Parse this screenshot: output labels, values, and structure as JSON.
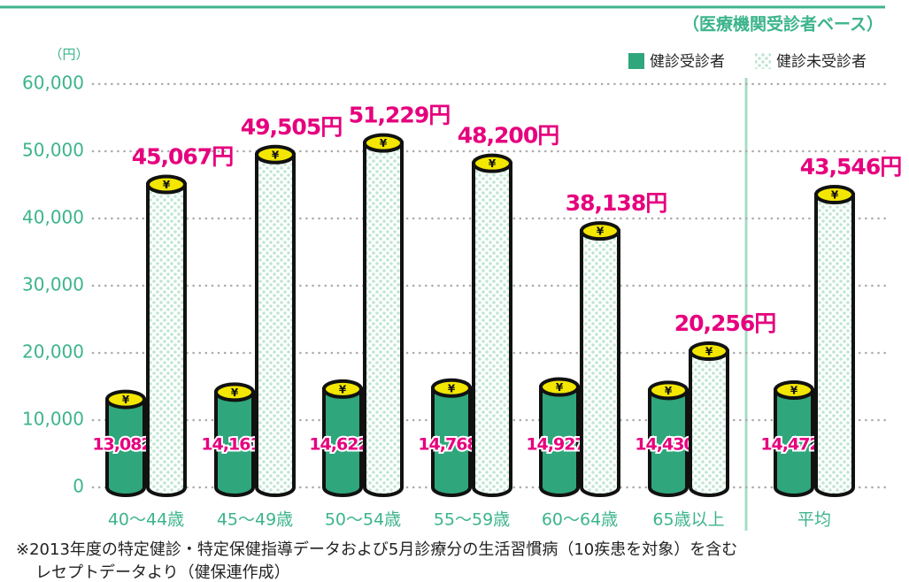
{
  "chart_data": {
    "type": "bar",
    "subtitle": "（医療機関受診者ベース）",
    "y_unit": "（円）",
    "marker_symbol": "¥",
    "categories": [
      "40〜44歳",
      "45〜49歳",
      "50〜54歳",
      "55〜59歳",
      "60〜64歳",
      "65歳以上",
      "平均"
    ],
    "series": [
      {
        "name": "健診受診者",
        "color": "#2fa67c",
        "values": [
          13082,
          14161,
          14622,
          14768,
          14927,
          14430,
          14472
        ],
        "value_labels": [
          "13,082円",
          "14,161円",
          "14,622円",
          "14,768円",
          "14,927円",
          "14,430円",
          "14,472円"
        ]
      },
      {
        "name": "健診未受診者",
        "color": "#bfe6d2",
        "values": [
          45067,
          49505,
          51229,
          48200,
          38138,
          20256,
          43546
        ],
        "value_labels": [
          "45,067円",
          "49,505円",
          "51,229円",
          "48,200円",
          "38,138円",
          "20,256円",
          "43,546円"
        ]
      }
    ],
    "ylim": [
      0,
      60000
    ],
    "yticks": [
      0,
      {
        "value": 10000,
        "label": "10,000"
      },
      {
        "value": 20000,
        "label": "20,000"
      },
      {
        "value": 30000,
        "label": "30,000"
      },
      {
        "value": 40000,
        "label": "40,000"
      },
      {
        "value": 50000,
        "label": "50,000"
      },
      {
        "value": 60000,
        "label": "60,000"
      }
    ],
    "grid": true,
    "label_color": "#e6007e",
    "notes": [
      "※2013年度の特定健診・特定保健指導データおよび5月診療分の生活習慣病（10疾患を対象）を含む",
      "レセプトデータより（健保連作成）"
    ]
  }
}
